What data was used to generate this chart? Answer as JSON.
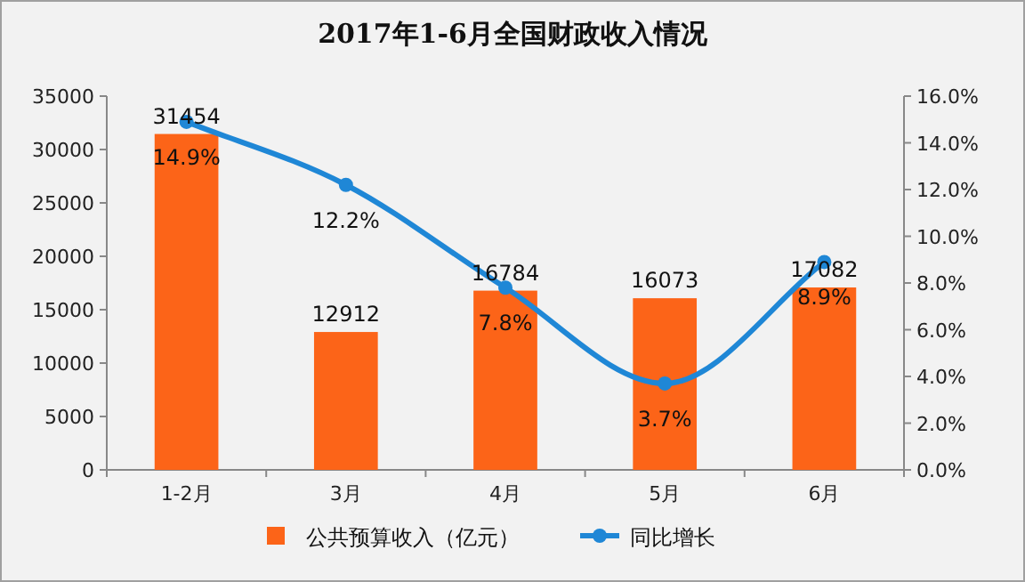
{
  "chart_data": {
    "type": "bar",
    "title": "2017年1-6月全国财政收入情况",
    "categories": [
      "1-2月",
      "3月",
      "4月",
      "5月",
      "6月"
    ],
    "series": [
      {
        "name": "公共预算收入（亿元）",
        "color": "#fc6418",
        "values": [
          31454,
          12912,
          16784,
          16073,
          17082
        ]
      },
      {
        "name": "同比增长",
        "type": "line",
        "axis": "y2",
        "color": "#1f87d6",
        "marker": "circle",
        "values": [
          14.9,
          12.2,
          7.8,
          3.7,
          8.9
        ],
        "value_labels": [
          "14.9%",
          "12.2%",
          "7.8%",
          "3.7%",
          "8.9%"
        ]
      }
    ],
    "ylim": [
      0,
      35000
    ],
    "yticks": [
      0,
      5000,
      10000,
      15000,
      20000,
      25000,
      30000,
      35000
    ],
    "y2lim": [
      0,
      16
    ],
    "y2ticks": [
      {
        "value": 0,
        "label": "0.0%"
      },
      {
        "value": 2,
        "label": "2.0%"
      },
      {
        "value": 4,
        "label": "4.0%"
      },
      {
        "value": 6,
        "label": "6.0%"
      },
      {
        "value": 8,
        "label": "8.0%"
      },
      {
        "value": 10,
        "label": "10.0%"
      },
      {
        "value": 12,
        "label": "12.0%"
      },
      {
        "value": 14,
        "label": "14.0%"
      },
      {
        "value": 16,
        "label": "16.0%"
      }
    ],
    "data_labels": true,
    "grid": false,
    "legend": "bottom"
  }
}
